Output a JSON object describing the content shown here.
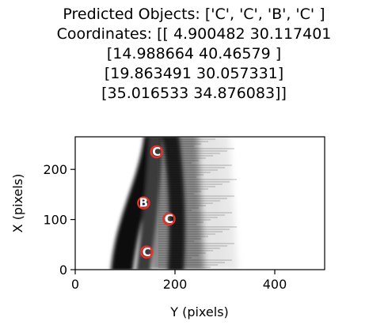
{
  "title_lines": [
    "Predicted Objects: ['C', 'C', 'B', 'C' ]",
    "Coordinates: [[ 4.900482 30.117401",
    "[14.988664 40.46579 ]",
    "[19.863491 30.057331]",
    "[35.016533 34.876083]]"
  ],
  "chart_data": {
    "type": "scatter",
    "title": "Predicted Objects: ['C', 'C', 'B', 'C' ] Coordinates: [[ 4.900482 30.117401 [14.988664 40.46579 ] [19.863491 30.057331] [35.016533 34.876083]]",
    "xlabel": "Y (pixels)",
    "ylabel": "X (pixels)",
    "xlim": [
      0,
      500
    ],
    "ylim": [
      0,
      265
    ],
    "xticks": [
      0,
      200,
      400
    ],
    "yticks": [
      0,
      100,
      200
    ],
    "background": "grayscale image (dark vertical streaks around Y 140-300)",
    "points": [
      {
        "label": "C",
        "x": 163,
        "y": 235
      },
      {
        "label": "B",
        "x": 137,
        "y": 133
      },
      {
        "label": "C",
        "x": 188,
        "y": 101
      },
      {
        "label": "C",
        "x": 143,
        "y": 35
      }
    ],
    "marker_color": "#e8302a"
  }
}
